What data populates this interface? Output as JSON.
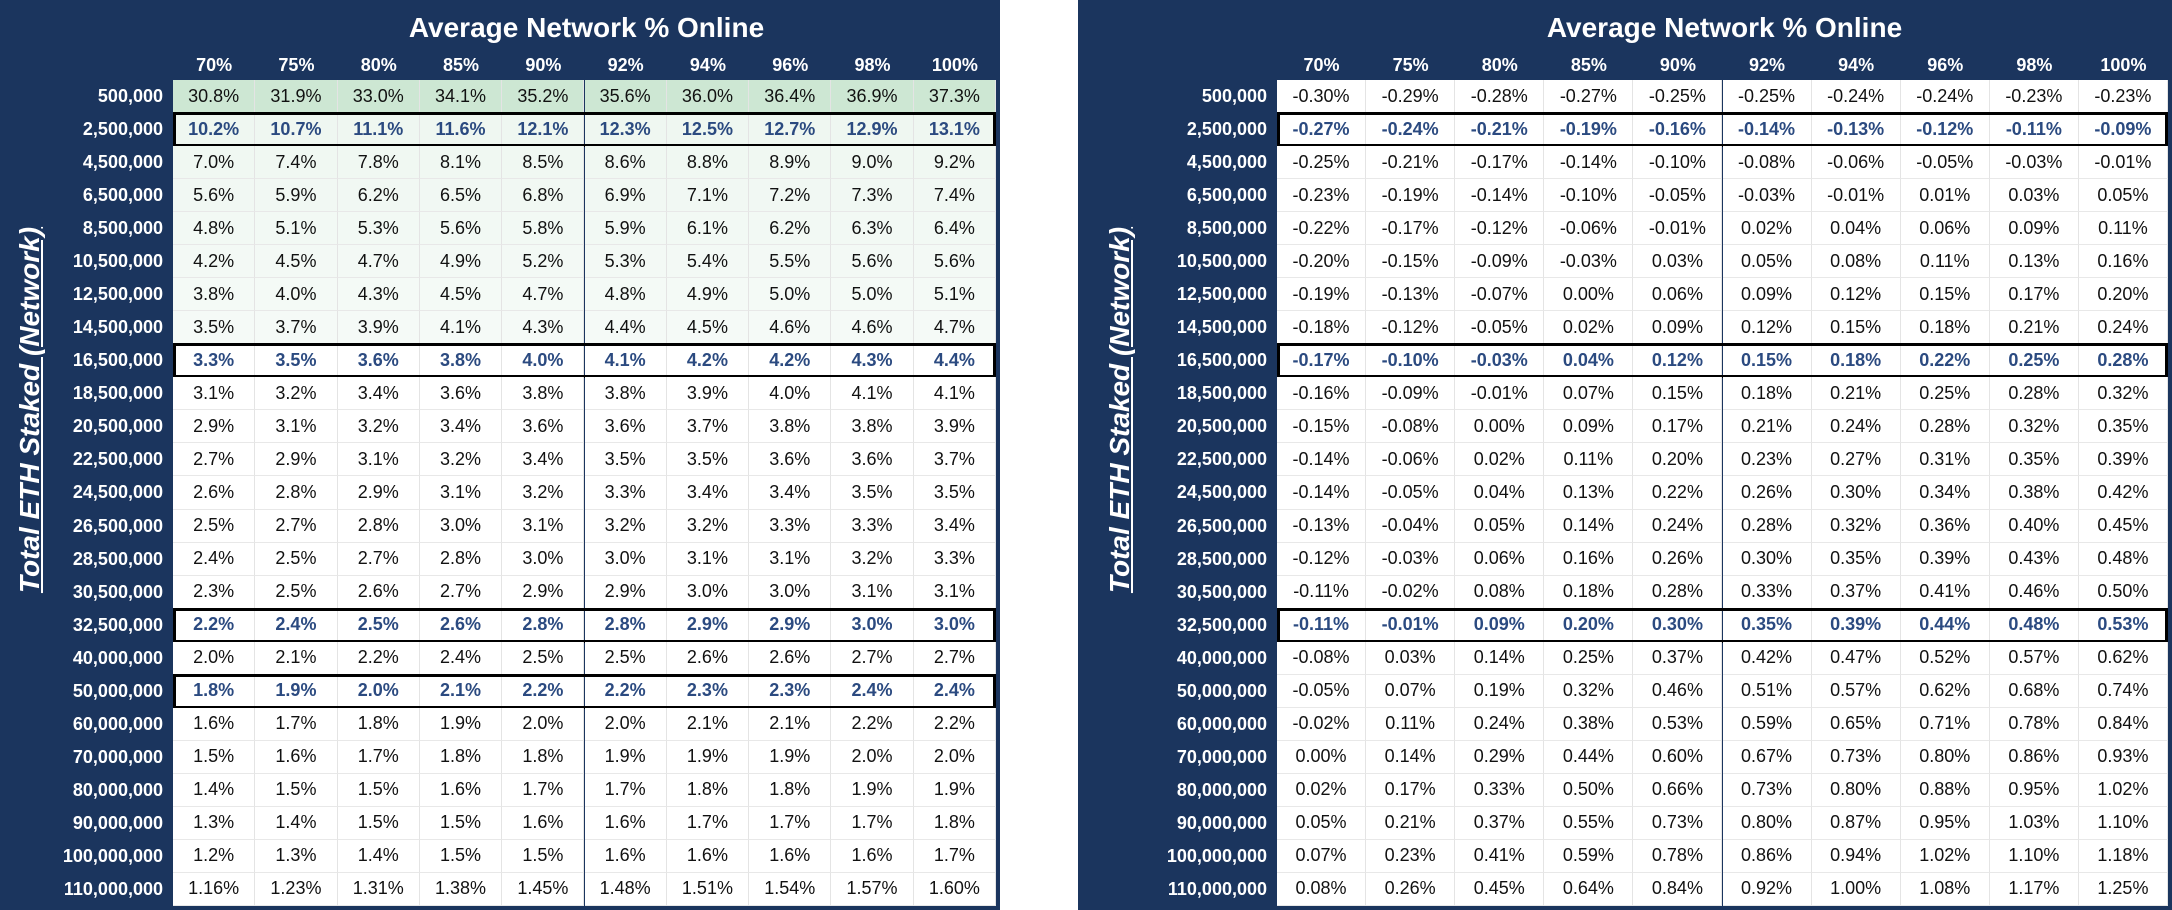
{
  "tables": [
    {
      "title": "Average Network % Online",
      "row_axis_label": "Total ETH Staked (Network)",
      "columns": [
        "70%",
        "75%",
        "80%",
        "85%",
        "90%",
        "92%",
        "94%",
        "96%",
        "98%",
        "100%"
      ],
      "rows": [
        {
          "label": "500,000",
          "cells": [
            "30.8%",
            "31.9%",
            "33.0%",
            "34.1%",
            "35.2%",
            "35.6%",
            "36.0%",
            "36.4%",
            "36.9%",
            "37.3%"
          ]
        },
        {
          "label": "2,500,000",
          "highlight": true,
          "cells": [
            "10.2%",
            "10.7%",
            "11.1%",
            "11.6%",
            "12.1%",
            "12.3%",
            "12.5%",
            "12.7%",
            "12.9%",
            "13.1%"
          ]
        },
        {
          "label": "4,500,000",
          "cells": [
            "7.0%",
            "7.4%",
            "7.8%",
            "8.1%",
            "8.5%",
            "8.6%",
            "8.8%",
            "8.9%",
            "9.0%",
            "9.2%"
          ]
        },
        {
          "label": "6,500,000",
          "cells": [
            "5.6%",
            "5.9%",
            "6.2%",
            "6.5%",
            "6.8%",
            "6.9%",
            "7.1%",
            "7.2%",
            "7.3%",
            "7.4%"
          ]
        },
        {
          "label": "8,500,000",
          "cells": [
            "4.8%",
            "5.1%",
            "5.3%",
            "5.6%",
            "5.8%",
            "5.9%",
            "6.1%",
            "6.2%",
            "6.3%",
            "6.4%"
          ]
        },
        {
          "label": "10,500,000",
          "cells": [
            "4.2%",
            "4.5%",
            "4.7%",
            "4.9%",
            "5.2%",
            "5.3%",
            "5.4%",
            "5.5%",
            "5.6%",
            "5.6%"
          ]
        },
        {
          "label": "12,500,000",
          "cells": [
            "3.8%",
            "4.0%",
            "4.3%",
            "4.5%",
            "4.7%",
            "4.8%",
            "4.9%",
            "5.0%",
            "5.0%",
            "5.1%"
          ]
        },
        {
          "label": "14,500,000",
          "cells": [
            "3.5%",
            "3.7%",
            "3.9%",
            "4.1%",
            "4.3%",
            "4.4%",
            "4.5%",
            "4.6%",
            "4.6%",
            "4.7%"
          ]
        },
        {
          "label": "16,500,000",
          "highlight": true,
          "cells": [
            "3.3%",
            "3.5%",
            "3.6%",
            "3.8%",
            "4.0%",
            "4.1%",
            "4.2%",
            "4.2%",
            "4.3%",
            "4.4%"
          ]
        },
        {
          "label": "18,500,000",
          "cells": [
            "3.1%",
            "3.2%",
            "3.4%",
            "3.6%",
            "3.8%",
            "3.8%",
            "3.9%",
            "4.0%",
            "4.1%",
            "4.1%"
          ]
        },
        {
          "label": "20,500,000",
          "cells": [
            "2.9%",
            "3.1%",
            "3.2%",
            "3.4%",
            "3.6%",
            "3.6%",
            "3.7%",
            "3.8%",
            "3.8%",
            "3.9%"
          ]
        },
        {
          "label": "22,500,000",
          "cells": [
            "2.7%",
            "2.9%",
            "3.1%",
            "3.2%",
            "3.4%",
            "3.5%",
            "3.5%",
            "3.6%",
            "3.6%",
            "3.7%"
          ]
        },
        {
          "label": "24,500,000",
          "cells": [
            "2.6%",
            "2.8%",
            "2.9%",
            "3.1%",
            "3.2%",
            "3.3%",
            "3.4%",
            "3.4%",
            "3.5%",
            "3.5%"
          ]
        },
        {
          "label": "26,500,000",
          "cells": [
            "2.5%",
            "2.7%",
            "2.8%",
            "3.0%",
            "3.1%",
            "3.2%",
            "3.2%",
            "3.3%",
            "3.3%",
            "3.4%"
          ]
        },
        {
          "label": "28,500,000",
          "cells": [
            "2.4%",
            "2.5%",
            "2.7%",
            "2.8%",
            "3.0%",
            "3.0%",
            "3.1%",
            "3.1%",
            "3.2%",
            "3.3%"
          ]
        },
        {
          "label": "30,500,000",
          "cells": [
            "2.3%",
            "2.5%",
            "2.6%",
            "2.7%",
            "2.9%",
            "2.9%",
            "3.0%",
            "3.0%",
            "3.1%",
            "3.1%"
          ]
        },
        {
          "label": "32,500,000",
          "highlight": true,
          "cells": [
            "2.2%",
            "2.4%",
            "2.5%",
            "2.6%",
            "2.8%",
            "2.8%",
            "2.9%",
            "2.9%",
            "3.0%",
            "3.0%"
          ]
        },
        {
          "label": "40,000,000",
          "cells": [
            "2.0%",
            "2.1%",
            "2.2%",
            "2.4%",
            "2.5%",
            "2.5%",
            "2.6%",
            "2.6%",
            "2.7%",
            "2.7%"
          ]
        },
        {
          "label": "50,000,000",
          "highlight": true,
          "cells": [
            "1.8%",
            "1.9%",
            "2.0%",
            "2.1%",
            "2.2%",
            "2.2%",
            "2.3%",
            "2.3%",
            "2.4%",
            "2.4%"
          ]
        },
        {
          "label": "60,000,000",
          "cells": [
            "1.6%",
            "1.7%",
            "1.8%",
            "1.9%",
            "2.0%",
            "2.0%",
            "2.1%",
            "2.1%",
            "2.2%",
            "2.2%"
          ]
        },
        {
          "label": "70,000,000",
          "cells": [
            "1.5%",
            "1.6%",
            "1.7%",
            "1.8%",
            "1.8%",
            "1.9%",
            "1.9%",
            "1.9%",
            "2.0%",
            "2.0%"
          ]
        },
        {
          "label": "80,000,000",
          "cells": [
            "1.4%",
            "1.5%",
            "1.5%",
            "1.6%",
            "1.7%",
            "1.7%",
            "1.8%",
            "1.8%",
            "1.9%",
            "1.9%"
          ]
        },
        {
          "label": "90,000,000",
          "cells": [
            "1.3%",
            "1.4%",
            "1.5%",
            "1.5%",
            "1.6%",
            "1.6%",
            "1.7%",
            "1.7%",
            "1.7%",
            "1.8%"
          ]
        },
        {
          "label": "100,000,000",
          "cells": [
            "1.2%",
            "1.3%",
            "1.4%",
            "1.5%",
            "1.5%",
            "1.6%",
            "1.6%",
            "1.6%",
            "1.6%",
            "1.7%"
          ]
        },
        {
          "label": "110,000,000",
          "cells": [
            "1.16%",
            "1.23%",
            "1.31%",
            "1.38%",
            "1.45%",
            "1.48%",
            "1.51%",
            "1.54%",
            "1.57%",
            "1.60%"
          ]
        }
      ]
    },
    {
      "title": "Average Network % Online",
      "row_axis_label": "Total ETH Staked (Network)",
      "columns": [
        "70%",
        "75%",
        "80%",
        "85%",
        "90%",
        "92%",
        "94%",
        "96%",
        "98%",
        "100%"
      ],
      "rows": [
        {
          "label": "500,000",
          "cells": [
            "-0.30%",
            "-0.29%",
            "-0.28%",
            "-0.27%",
            "-0.25%",
            "-0.25%",
            "-0.24%",
            "-0.24%",
            "-0.23%",
            "-0.23%"
          ]
        },
        {
          "label": "2,500,000",
          "highlight": true,
          "cells": [
            "-0.27%",
            "-0.24%",
            "-0.21%",
            "-0.19%",
            "-0.16%",
            "-0.14%",
            "-0.13%",
            "-0.12%",
            "-0.11%",
            "-0.09%"
          ]
        },
        {
          "label": "4,500,000",
          "cells": [
            "-0.25%",
            "-0.21%",
            "-0.17%",
            "-0.14%",
            "-0.10%",
            "-0.08%",
            "-0.06%",
            "-0.05%",
            "-0.03%",
            "-0.01%"
          ]
        },
        {
          "label": "6,500,000",
          "cells": [
            "-0.23%",
            "-0.19%",
            "-0.14%",
            "-0.10%",
            "-0.05%",
            "-0.03%",
            "-0.01%",
            "0.01%",
            "0.03%",
            "0.05%"
          ]
        },
        {
          "label": "8,500,000",
          "cells": [
            "-0.22%",
            "-0.17%",
            "-0.12%",
            "-0.06%",
            "-0.01%",
            "0.02%",
            "0.04%",
            "0.06%",
            "0.09%",
            "0.11%"
          ]
        },
        {
          "label": "10,500,000",
          "cells": [
            "-0.20%",
            "-0.15%",
            "-0.09%",
            "-0.03%",
            "0.03%",
            "0.05%",
            "0.08%",
            "0.11%",
            "0.13%",
            "0.16%"
          ]
        },
        {
          "label": "12,500,000",
          "cells": [
            "-0.19%",
            "-0.13%",
            "-0.07%",
            "0.00%",
            "0.06%",
            "0.09%",
            "0.12%",
            "0.15%",
            "0.17%",
            "0.20%"
          ]
        },
        {
          "label": "14,500,000",
          "cells": [
            "-0.18%",
            "-0.12%",
            "-0.05%",
            "0.02%",
            "0.09%",
            "0.12%",
            "0.15%",
            "0.18%",
            "0.21%",
            "0.24%"
          ]
        },
        {
          "label": "16,500,000",
          "highlight": true,
          "cells": [
            "-0.17%",
            "-0.10%",
            "-0.03%",
            "0.04%",
            "0.12%",
            "0.15%",
            "0.18%",
            "0.22%",
            "0.25%",
            "0.28%"
          ]
        },
        {
          "label": "18,500,000",
          "cells": [
            "-0.16%",
            "-0.09%",
            "-0.01%",
            "0.07%",
            "0.15%",
            "0.18%",
            "0.21%",
            "0.25%",
            "0.28%",
            "0.32%"
          ]
        },
        {
          "label": "20,500,000",
          "cells": [
            "-0.15%",
            "-0.08%",
            "0.00%",
            "0.09%",
            "0.17%",
            "0.21%",
            "0.24%",
            "0.28%",
            "0.32%",
            "0.35%"
          ]
        },
        {
          "label": "22,500,000",
          "cells": [
            "-0.14%",
            "-0.06%",
            "0.02%",
            "0.11%",
            "0.20%",
            "0.23%",
            "0.27%",
            "0.31%",
            "0.35%",
            "0.39%"
          ]
        },
        {
          "label": "24,500,000",
          "cells": [
            "-0.14%",
            "-0.05%",
            "0.04%",
            "0.13%",
            "0.22%",
            "0.26%",
            "0.30%",
            "0.34%",
            "0.38%",
            "0.42%"
          ]
        },
        {
          "label": "26,500,000",
          "cells": [
            "-0.13%",
            "-0.04%",
            "0.05%",
            "0.14%",
            "0.24%",
            "0.28%",
            "0.32%",
            "0.36%",
            "0.40%",
            "0.45%"
          ]
        },
        {
          "label": "28,500,000",
          "cells": [
            "-0.12%",
            "-0.03%",
            "0.06%",
            "0.16%",
            "0.26%",
            "0.30%",
            "0.35%",
            "0.39%",
            "0.43%",
            "0.48%"
          ]
        },
        {
          "label": "30,500,000",
          "cells": [
            "-0.11%",
            "-0.02%",
            "0.08%",
            "0.18%",
            "0.28%",
            "0.33%",
            "0.37%",
            "0.41%",
            "0.46%",
            "0.50%"
          ]
        },
        {
          "label": "32,500,000",
          "highlight": true,
          "cells": [
            "-0.11%",
            "-0.01%",
            "0.09%",
            "0.20%",
            "0.30%",
            "0.35%",
            "0.39%",
            "0.44%",
            "0.48%",
            "0.53%"
          ]
        },
        {
          "label": "40,000,000",
          "cells": [
            "-0.08%",
            "0.03%",
            "0.14%",
            "0.25%",
            "0.37%",
            "0.42%",
            "0.47%",
            "0.52%",
            "0.57%",
            "0.62%"
          ]
        },
        {
          "label": "50,000,000",
          "cells": [
            "-0.05%",
            "0.07%",
            "0.19%",
            "0.32%",
            "0.46%",
            "0.51%",
            "0.57%",
            "0.62%",
            "0.68%",
            "0.74%"
          ]
        },
        {
          "label": "60,000,000",
          "cells": [
            "-0.02%",
            "0.11%",
            "0.24%",
            "0.38%",
            "0.53%",
            "0.59%",
            "0.65%",
            "0.71%",
            "0.78%",
            "0.84%"
          ]
        },
        {
          "label": "70,000,000",
          "cells": [
            "0.00%",
            "0.14%",
            "0.29%",
            "0.44%",
            "0.60%",
            "0.67%",
            "0.73%",
            "0.80%",
            "0.86%",
            "0.93%"
          ]
        },
        {
          "label": "80,000,000",
          "cells": [
            "0.02%",
            "0.17%",
            "0.33%",
            "0.50%",
            "0.66%",
            "0.73%",
            "0.80%",
            "0.88%",
            "0.95%",
            "1.02%"
          ]
        },
        {
          "label": "90,000,000",
          "cells": [
            "0.05%",
            "0.21%",
            "0.37%",
            "0.55%",
            "0.73%",
            "0.80%",
            "0.87%",
            "0.95%",
            "1.03%",
            "1.10%"
          ]
        },
        {
          "label": "100,000,000",
          "cells": [
            "0.07%",
            "0.23%",
            "0.41%",
            "0.59%",
            "0.78%",
            "0.86%",
            "0.94%",
            "1.02%",
            "1.10%",
            "1.18%"
          ]
        },
        {
          "label": "110,000,000",
          "cells": [
            "0.08%",
            "0.26%",
            "0.45%",
            "0.64%",
            "0.84%",
            "0.92%",
            "1.00%",
            "1.08%",
            "1.17%",
            "1.25%"
          ]
        }
      ]
    }
  ]
}
